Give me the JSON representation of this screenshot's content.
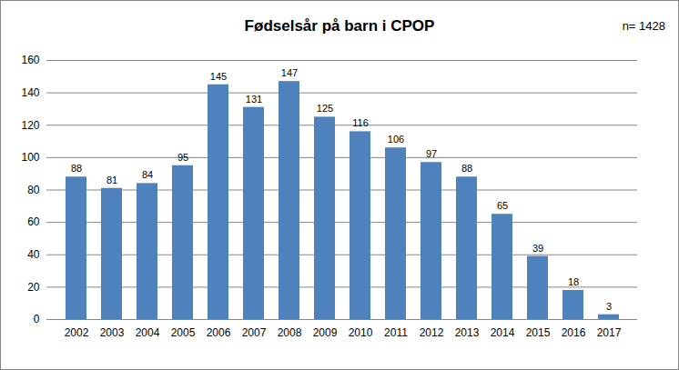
{
  "chart_data": {
    "type": "bar",
    "title": "Fødselsår på barn i CPOP",
    "annotations": [
      "n= 1428"
    ],
    "categories": [
      "2002",
      "2003",
      "2004",
      "2005",
      "2006",
      "2007",
      "2008",
      "2009",
      "2010",
      "2011",
      "2012",
      "2013",
      "2014",
      "2015",
      "2016",
      "2017"
    ],
    "values": [
      88,
      81,
      84,
      95,
      145,
      131,
      147,
      125,
      116,
      106,
      97,
      88,
      65,
      39,
      18,
      3
    ],
    "color": "#4f81bd",
    "ylim": [
      0,
      160
    ],
    "yticks": [
      0,
      20,
      40,
      60,
      80,
      100,
      120,
      140,
      160
    ],
    "grid": true,
    "data_labels": true
  }
}
